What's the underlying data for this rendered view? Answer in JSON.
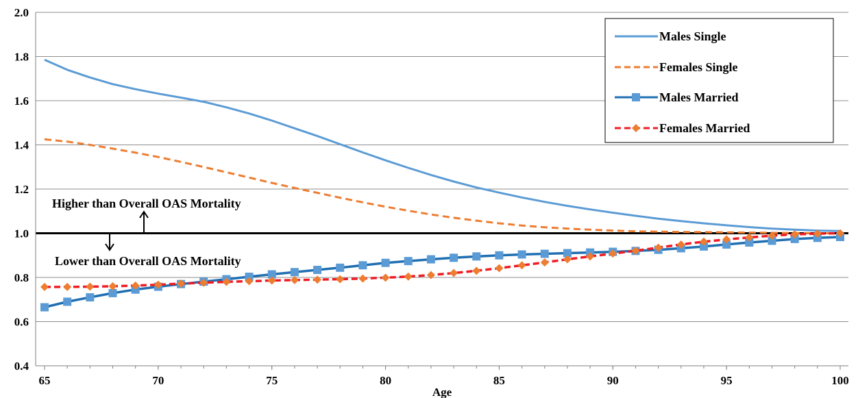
{
  "chart_data": {
    "type": "line",
    "xlabel": "Age",
    "ylabel": "",
    "xlim": [
      65,
      100
    ],
    "ylim": [
      0.4,
      2.0
    ],
    "x_ticks": [
      "65",
      "70",
      "75",
      "80",
      "85",
      "90",
      "95",
      "100"
    ],
    "y_ticks": [
      "0.4",
      "0.6",
      "0.8",
      "1.0",
      "1.2",
      "1.4",
      "1.6",
      "1.8",
      "2.0"
    ],
    "grid": "horizontal",
    "legend_position": "top-right",
    "x": [
      65,
      66,
      67,
      68,
      69,
      70,
      71,
      72,
      73,
      74,
      75,
      76,
      77,
      78,
      79,
      80,
      81,
      82,
      83,
      84,
      85,
      86,
      87,
      88,
      89,
      90,
      91,
      92,
      93,
      94,
      95,
      96,
      97,
      98,
      99,
      100
    ],
    "series": [
      {
        "name": "Males Single",
        "color": "#5b9bd5",
        "style": "solid",
        "marker": "none",
        "values": [
          1.785,
          1.74,
          1.705,
          1.675,
          1.652,
          1.632,
          1.614,
          1.595,
          1.57,
          1.542,
          1.51,
          1.475,
          1.44,
          1.403,
          1.366,
          1.33,
          1.296,
          1.264,
          1.234,
          1.207,
          1.184,
          1.162,
          1.142,
          1.124,
          1.108,
          1.093,
          1.079,
          1.066,
          1.055,
          1.045,
          1.036,
          1.028,
          1.021,
          1.016,
          1.012,
          1.01
        ]
      },
      {
        "name": "Females Single",
        "color": "#ed7d31",
        "style": "dashed",
        "marker": "none",
        "values": [
          1.425,
          1.415,
          1.4,
          1.383,
          1.365,
          1.345,
          1.323,
          1.3,
          1.276,
          1.252,
          1.228,
          1.205,
          1.183,
          1.161,
          1.14,
          1.12,
          1.102,
          1.085,
          1.07,
          1.057,
          1.045,
          1.035,
          1.027,
          1.021,
          1.016,
          1.012,
          1.009,
          1.007,
          1.006,
          1.005,
          1.004,
          1.003,
          1.002,
          1.001,
          1.0,
          1.0
        ]
      },
      {
        "name": "Males Married",
        "color": "#1f6fb2",
        "marker_color": "#5b9bd5",
        "style": "solid",
        "marker": "square",
        "values": [
          0.665,
          0.69,
          0.71,
          0.729,
          0.745,
          0.758,
          0.77,
          0.781,
          0.792,
          0.803,
          0.814,
          0.824,
          0.834,
          0.844,
          0.855,
          0.866,
          0.874,
          0.882,
          0.889,
          0.895,
          0.9,
          0.904,
          0.907,
          0.91,
          0.913,
          0.916,
          0.92,
          0.925,
          0.932,
          0.94,
          0.949,
          0.958,
          0.966,
          0.974,
          0.979,
          0.983
        ]
      },
      {
        "name": "Females Married",
        "color": "#ee1c25",
        "marker_color": "#ed7d31",
        "style": "dashed",
        "marker": "diamond",
        "values": [
          0.757,
          0.757,
          0.758,
          0.76,
          0.763,
          0.767,
          0.772,
          0.776,
          0.78,
          0.783,
          0.786,
          0.788,
          0.79,
          0.792,
          0.795,
          0.799,
          0.804,
          0.811,
          0.82,
          0.83,
          0.842,
          0.855,
          0.868,
          0.882,
          0.895,
          0.908,
          0.921,
          0.935,
          0.949,
          0.962,
          0.972,
          0.981,
          0.989,
          0.995,
          0.998,
          1.0
        ]
      }
    ],
    "reference_line": {
      "y": 1.0,
      "color": "#000000"
    },
    "annotations": [
      {
        "text": "Higher than Overall OAS Mortality",
        "arrow": "up"
      },
      {
        "text": "Lower than Overall OAS Mortality",
        "arrow": "down"
      }
    ]
  }
}
